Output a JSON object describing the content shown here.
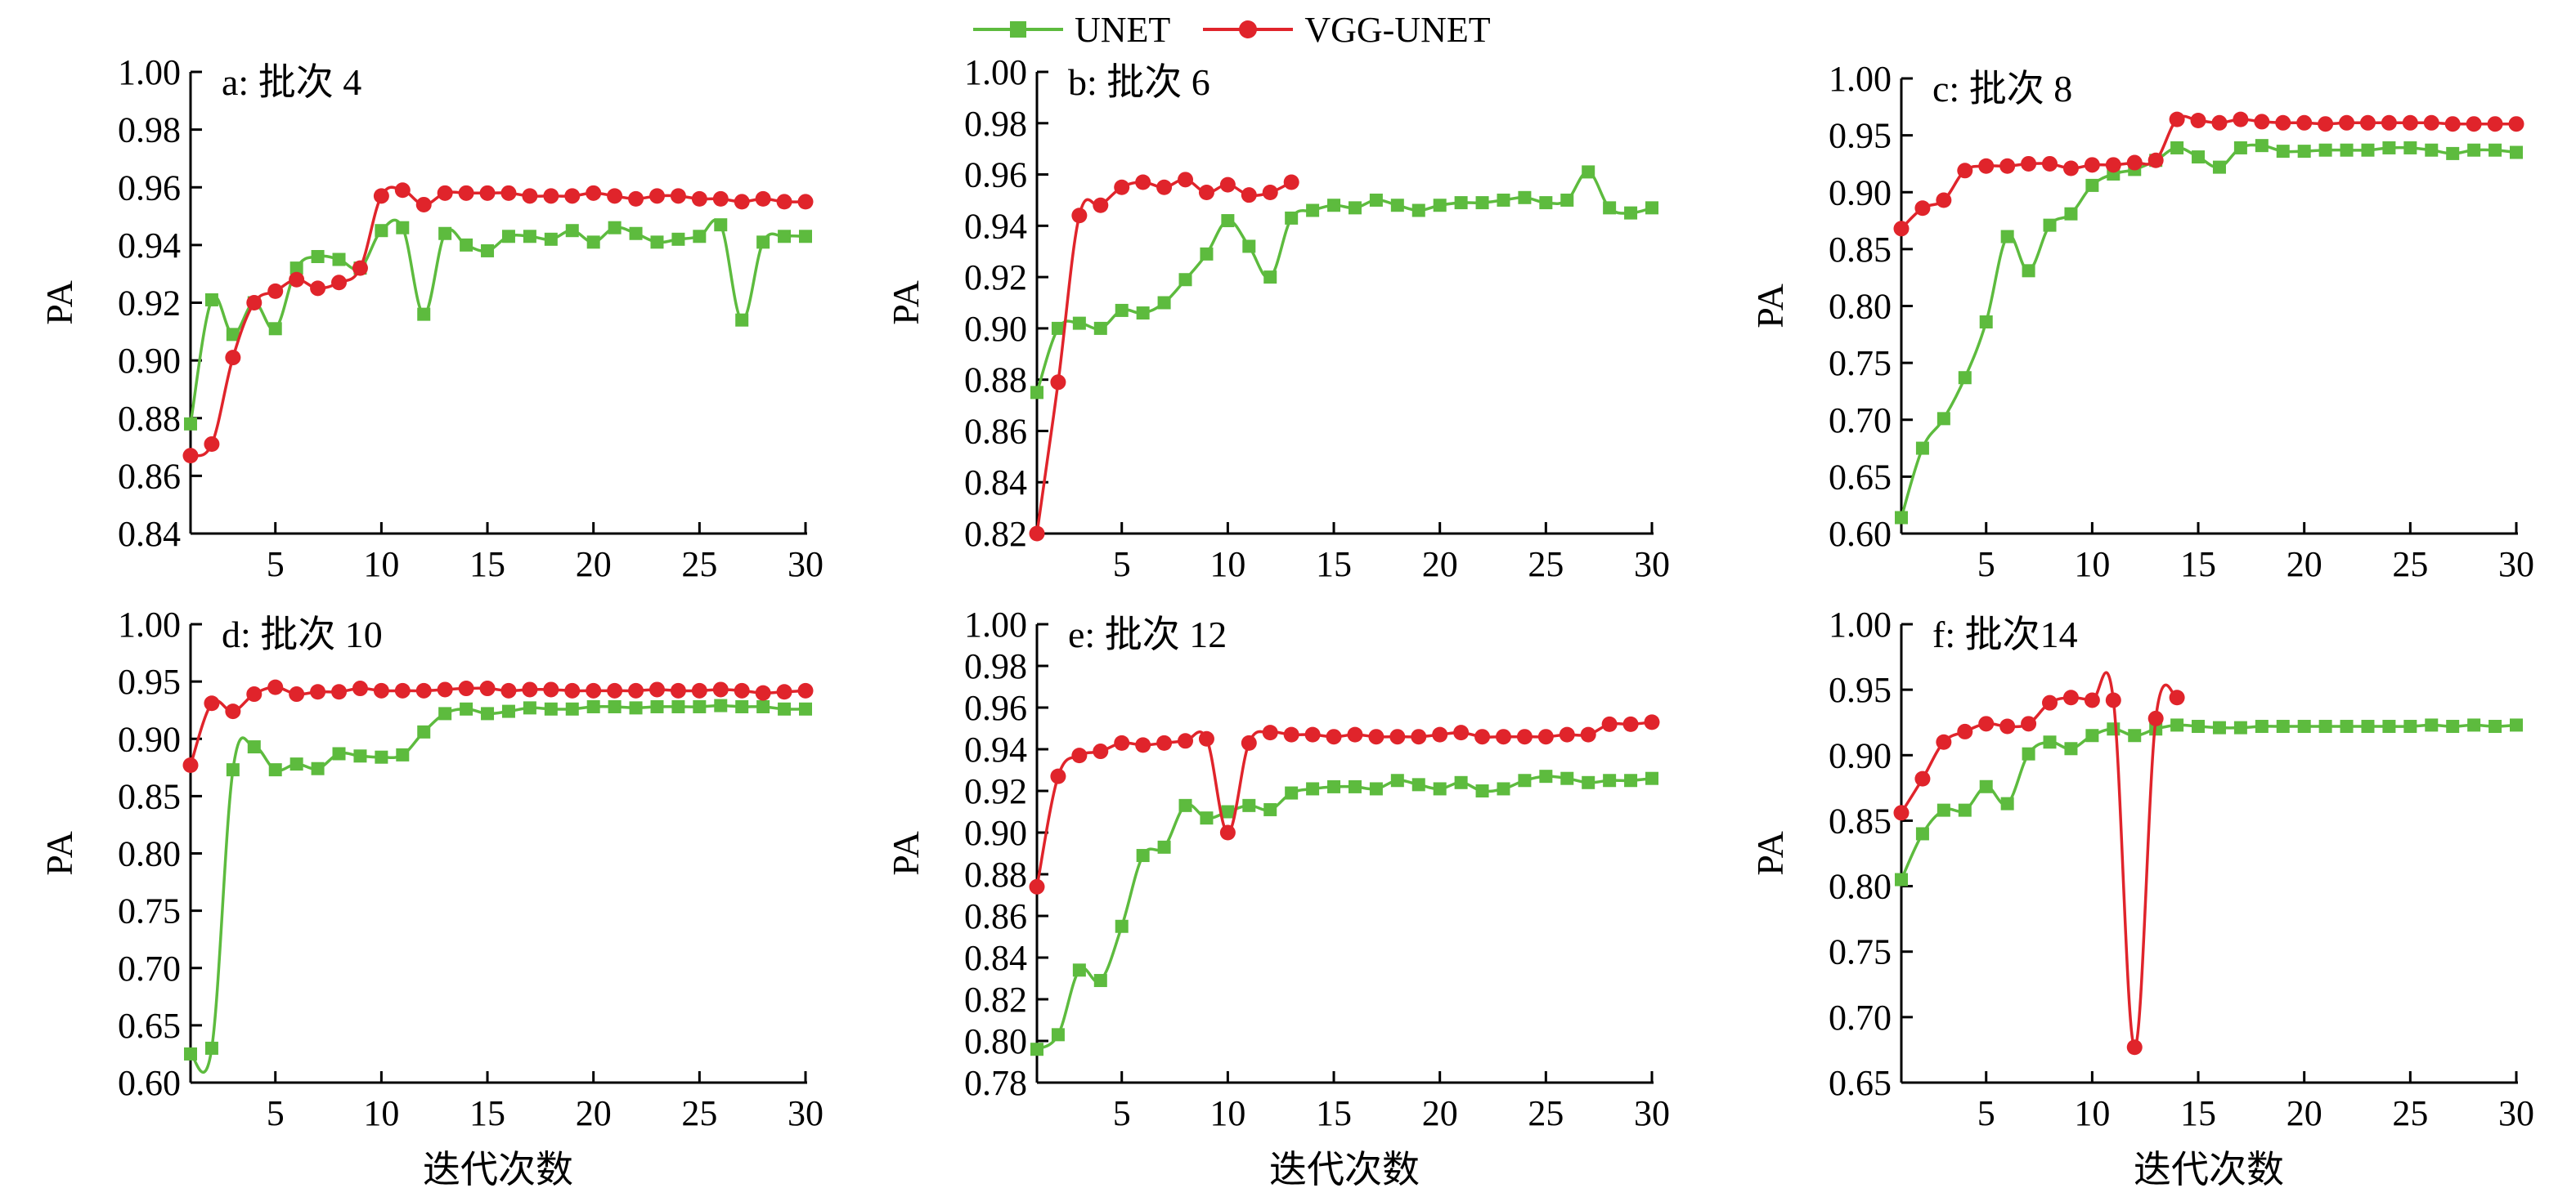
{
  "legend": {
    "unet_label": "UNET",
    "vgg_label": "VGG-UNET"
  },
  "colors": {
    "UNET": "#5dbb3e",
    "VGG-UNET": "#e0242b",
    "axis": "#000000"
  },
  "chart_data": [
    {
      "type": "line",
      "title": "a: 批次 4",
      "xlabel": "",
      "ylabel": "PA",
      "xlim": [
        1,
        30
      ],
      "ylim": [
        0.84,
        1.0
      ],
      "xticks": [
        5,
        10,
        15,
        20,
        25,
        30
      ],
      "yticks": [
        "0.84",
        "0.86",
        "0.88",
        "0.90",
        "0.92",
        "0.94",
        "0.96",
        "0.98",
        "1.00"
      ],
      "series": [
        {
          "name": "UNET",
          "x": [
            1,
            2,
            3,
            4,
            5,
            6,
            7,
            8,
            9,
            10,
            11,
            12,
            13,
            14,
            15,
            16,
            17,
            18,
            19,
            20,
            21,
            22,
            23,
            24,
            25,
            26,
            27,
            28,
            29,
            30
          ],
          "values": [
            0.878,
            0.921,
            0.909,
            0.92,
            0.911,
            0.932,
            0.936,
            0.935,
            0.932,
            0.945,
            0.946,
            0.916,
            0.944,
            0.94,
            0.938,
            0.943,
            0.943,
            0.942,
            0.945,
            0.941,
            0.946,
            0.944,
            0.941,
            0.942,
            0.943,
            0.947,
            0.914,
            0.941,
            0.943,
            0.943
          ]
        },
        {
          "name": "VGG-UNET",
          "x": [
            1,
            2,
            3,
            4,
            5,
            6,
            7,
            8,
            9,
            10,
            11,
            12,
            13,
            14,
            15,
            16,
            17,
            18,
            19,
            20,
            21,
            22,
            23,
            24,
            25,
            26,
            27,
            28,
            29,
            30
          ],
          "values": [
            0.867,
            0.871,
            0.901,
            0.92,
            0.924,
            0.928,
            0.925,
            0.927,
            0.932,
            0.957,
            0.959,
            0.954,
            0.958,
            0.958,
            0.958,
            0.958,
            0.957,
            0.957,
            0.957,
            0.958,
            0.957,
            0.956,
            0.957,
            0.957,
            0.956,
            0.956,
            0.955,
            0.956,
            0.955,
            0.955
          ]
        }
      ]
    },
    {
      "type": "line",
      "title": "b: 批次 6",
      "xlabel": "",
      "ylabel": "PA",
      "xlim": [
        1,
        30
      ],
      "ylim": [
        0.82,
        1.0
      ],
      "xticks": [
        5,
        10,
        15,
        20,
        25,
        30
      ],
      "yticks": [
        "0.82",
        "0.84",
        "0.86",
        "0.88",
        "0.90",
        "0.92",
        "0.94",
        "0.96",
        "0.98",
        "1.00"
      ],
      "series": [
        {
          "name": "UNET",
          "x": [
            1,
            2,
            3,
            4,
            5,
            6,
            7,
            8,
            9,
            10,
            11,
            12,
            13,
            14,
            15,
            16,
            17,
            18,
            19,
            20,
            21,
            22,
            23,
            24,
            25,
            26,
            27,
            28,
            29,
            30
          ],
          "values": [
            0.875,
            0.9,
            0.902,
            0.9,
            0.907,
            0.906,
            0.91,
            0.919,
            0.929,
            0.942,
            0.932,
            0.92,
            0.943,
            0.946,
            0.948,
            0.947,
            0.95,
            0.948,
            0.946,
            0.948,
            0.949,
            0.949,
            0.95,
            0.951,
            0.949,
            0.95,
            0.961,
            0.947,
            0.945,
            0.947
          ]
        },
        {
          "name": "VGG-UNET",
          "x": [
            1,
            2,
            3,
            4,
            5,
            6,
            7,
            8,
            9,
            10,
            11,
            12,
            13
          ],
          "values": [
            0.82,
            0.879,
            0.944,
            0.948,
            0.955,
            0.957,
            0.955,
            0.958,
            0.953,
            0.956,
            0.952,
            0.953,
            0.957
          ]
        }
      ]
    },
    {
      "type": "line",
      "title": "c: 批次 8",
      "xlabel": "",
      "ylabel": "PA",
      "xlim": [
        1,
        30
      ],
      "ylim": [
        0.6,
        1.0
      ],
      "xticks": [
        5,
        10,
        15,
        20,
        25,
        30
      ],
      "yticks": [
        "0.60",
        "0.65",
        "0.70",
        "0.75",
        "0.80",
        "0.85",
        "0.90",
        "0.95",
        "1.00"
      ],
      "series": [
        {
          "name": "UNET",
          "x": [
            1,
            2,
            3,
            4,
            5,
            6,
            7,
            8,
            9,
            10,
            11,
            12,
            13,
            14,
            15,
            16,
            17,
            18,
            19,
            20,
            21,
            22,
            23,
            24,
            25,
            26,
            27,
            28,
            29,
            30
          ],
          "values": [
            0.614,
            0.675,
            0.701,
            0.737,
            0.786,
            0.861,
            0.831,
            0.871,
            0.881,
            0.906,
            0.916,
            0.92,
            0.928,
            0.939,
            0.931,
            0.922,
            0.939,
            0.941,
            0.936,
            0.936,
            0.937,
            0.937,
            0.937,
            0.939,
            0.939,
            0.937,
            0.934,
            0.937,
            0.937,
            0.935
          ]
        },
        {
          "name": "VGG-UNET",
          "x": [
            1,
            2,
            3,
            4,
            5,
            6,
            7,
            8,
            9,
            10,
            11,
            12,
            13,
            14,
            15,
            16,
            17,
            18,
            19,
            20,
            21,
            22,
            23,
            24,
            25,
            26,
            27,
            28,
            29,
            30
          ],
          "values": [
            0.868,
            0.886,
            0.893,
            0.919,
            0.923,
            0.923,
            0.925,
            0.925,
            0.921,
            0.924,
            0.924,
            0.926,
            0.928,
            0.964,
            0.963,
            0.961,
            0.964,
            0.962,
            0.961,
            0.961,
            0.96,
            0.961,
            0.961,
            0.961,
            0.961,
            0.961,
            0.96,
            0.96,
            0.96,
            0.96
          ]
        }
      ]
    },
    {
      "type": "line",
      "title": "d: 批次 10",
      "xlabel": "迭代次数",
      "ylabel": "PA",
      "xlim": [
        1,
        30
      ],
      "ylim": [
        0.6,
        1.0
      ],
      "xticks": [
        5,
        10,
        15,
        20,
        25,
        30
      ],
      "yticks": [
        "0.60",
        "0.65",
        "0.70",
        "0.75",
        "0.80",
        "0.85",
        "0.90",
        "0.95",
        "1.00"
      ],
      "series": [
        {
          "name": "UNET",
          "x": [
            1,
            2,
            3,
            4,
            5,
            6,
            7,
            8,
            9,
            10,
            11,
            12,
            13,
            14,
            15,
            16,
            17,
            18,
            19,
            20,
            21,
            22,
            23,
            24,
            25,
            26,
            27,
            28,
            29,
            30
          ],
          "values": [
            0.625,
            0.63,
            0.873,
            0.893,
            0.873,
            0.878,
            0.874,
            0.887,
            0.885,
            0.884,
            0.886,
            0.906,
            0.922,
            0.926,
            0.922,
            0.924,
            0.927,
            0.926,
            0.926,
            0.928,
            0.928,
            0.927,
            0.928,
            0.928,
            0.928,
            0.929,
            0.928,
            0.928,
            0.926,
            0.926
          ]
        },
        {
          "name": "VGG-UNET",
          "x": [
            1,
            2,
            3,
            4,
            5,
            6,
            7,
            8,
            9,
            10,
            11,
            12,
            13,
            14,
            15,
            16,
            17,
            18,
            19,
            20,
            21,
            22,
            23,
            24,
            25,
            26,
            27,
            28,
            29,
            30
          ],
          "values": [
            0.877,
            0.931,
            0.924,
            0.939,
            0.945,
            0.939,
            0.941,
            0.941,
            0.944,
            0.942,
            0.942,
            0.942,
            0.943,
            0.944,
            0.944,
            0.942,
            0.943,
            0.943,
            0.942,
            0.942,
            0.942,
            0.942,
            0.943,
            0.942,
            0.942,
            0.943,
            0.942,
            0.94,
            0.941,
            0.942
          ]
        }
      ]
    },
    {
      "type": "line",
      "title": "e: 批次 12",
      "xlabel": "迭代次数",
      "ylabel": "PA",
      "xlim": [
        1,
        30
      ],
      "ylim": [
        0.78,
        1.0
      ],
      "xticks": [
        5,
        10,
        15,
        20,
        25,
        30
      ],
      "yticks": [
        "0.78",
        "0.80",
        "0.82",
        "0.84",
        "0.86",
        "0.88",
        "0.90",
        "0.92",
        "0.94",
        "0.96",
        "0.98",
        "1.00"
      ],
      "series": [
        {
          "name": "UNET",
          "x": [
            1,
            2,
            3,
            4,
            5,
            6,
            7,
            8,
            9,
            10,
            11,
            12,
            13,
            14,
            15,
            16,
            17,
            18,
            19,
            20,
            21,
            22,
            23,
            24,
            25,
            26,
            27,
            28,
            29,
            30
          ],
          "values": [
            0.796,
            0.803,
            0.834,
            0.829,
            0.855,
            0.889,
            0.893,
            0.913,
            0.907,
            0.91,
            0.913,
            0.911,
            0.919,
            0.921,
            0.922,
            0.922,
            0.921,
            0.925,
            0.923,
            0.921,
            0.924,
            0.92,
            0.921,
            0.925,
            0.927,
            0.926,
            0.924,
            0.925,
            0.925,
            0.926
          ]
        },
        {
          "name": "VGG-UNET",
          "x": [
            1,
            2,
            3,
            4,
            5,
            6,
            7,
            8,
            9,
            10,
            11,
            12,
            13,
            14,
            15,
            16,
            17,
            18,
            19,
            20,
            21,
            22,
            23,
            24,
            25,
            26,
            27,
            28,
            29,
            30
          ],
          "values": [
            0.874,
            0.927,
            0.937,
            0.939,
            0.943,
            0.942,
            0.943,
            0.944,
            0.945,
            0.9,
            0.943,
            0.948,
            0.947,
            0.947,
            0.946,
            0.947,
            0.946,
            0.946,
            0.946,
            0.947,
            0.948,
            0.946,
            0.946,
            0.946,
            0.946,
            0.947,
            0.947,
            0.952,
            0.952,
            0.953
          ]
        }
      ]
    },
    {
      "type": "line",
      "title": "f: 批次14",
      "xlabel": "迭代次数",
      "ylabel": "PA",
      "xlim": [
        1,
        30
      ],
      "ylim": [
        0.65,
        1.0
      ],
      "xticks": [
        5,
        10,
        15,
        20,
        25,
        30
      ],
      "yticks": [
        "0.65",
        "0.70",
        "0.75",
        "0.80",
        "0.85",
        "0.90",
        "0.95",
        "1.00"
      ],
      "series": [
        {
          "name": "UNET",
          "x": [
            1,
            2,
            3,
            4,
            5,
            6,
            7,
            8,
            9,
            10,
            11,
            12,
            13,
            14,
            15,
            16,
            17,
            18,
            19,
            20,
            21,
            22,
            23,
            24,
            25,
            26,
            27,
            28,
            29,
            30
          ],
          "values": [
            0.805,
            0.84,
            0.858,
            0.858,
            0.876,
            0.863,
            0.901,
            0.91,
            0.905,
            0.915,
            0.92,
            0.915,
            0.92,
            0.923,
            0.922,
            0.921,
            0.921,
            0.922,
            0.922,
            0.922,
            0.922,
            0.922,
            0.922,
            0.922,
            0.922,
            0.923,
            0.922,
            0.923,
            0.922,
            0.923
          ]
        },
        {
          "name": "VGG-UNET",
          "x": [
            1,
            2,
            3,
            4,
            5,
            6,
            7,
            8,
            9,
            10,
            11,
            12,
            13,
            14
          ],
          "values": [
            0.856,
            0.882,
            0.91,
            0.918,
            0.924,
            0.922,
            0.924,
            0.94,
            0.944,
            0.942,
            0.942,
            0.677,
            0.928,
            0.944
          ]
        }
      ]
    }
  ]
}
